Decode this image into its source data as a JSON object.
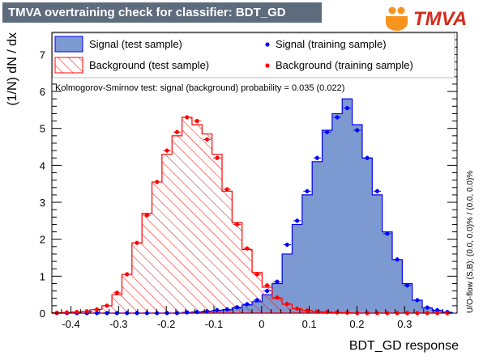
{
  "title": "TMVA overtraining check for classifier: BDT_GD",
  "logo_text": "TMVA",
  "ks_text": "Kolmogorov-Smirnov test: signal (background) probability = 0.035 (0.022)",
  "side_text": "U/O-flow (S,B): (0.0, 0.0)% / (0.0, 0.0)%",
  "colors": {
    "signal_fill": "#7d99d1",
    "signal_line": "#0000ee",
    "background_hatch": "#ff0000",
    "signal_points": "#0000ff",
    "background_points": "#ff0000",
    "title_bg": "#5d6b7d"
  },
  "chart_data": {
    "type": "bar",
    "xlabel": "BDT_GD response",
    "ylabel": "(1/N) dN / dx",
    "xlim": [
      -0.44,
      0.41
    ],
    "ylim": [
      0,
      7.6
    ],
    "xticks": [
      -0.4,
      -0.3,
      -0.2,
      -0.1,
      0,
      0.1,
      0.2,
      0.3
    ],
    "xtick_labels": [
      "-0.4",
      "-0.3",
      "-0.2",
      "-0.1",
      "0",
      "0.1",
      "0.2",
      "0.3"
    ],
    "yticks": [
      0,
      1,
      2,
      3,
      4,
      5,
      6,
      7
    ],
    "ytick_labels": [
      "0",
      "1",
      "2",
      "3",
      "4",
      "5",
      "6",
      "7"
    ],
    "bin_edges": [
      -0.44,
      -0.419,
      -0.398,
      -0.377,
      -0.356,
      -0.335,
      -0.314,
      -0.293,
      -0.272,
      -0.251,
      -0.23,
      -0.209,
      -0.188,
      -0.167,
      -0.146,
      -0.125,
      -0.104,
      -0.083,
      -0.062,
      -0.041,
      -0.02,
      0.001,
      0.022,
      0.043,
      0.064,
      0.085,
      0.106,
      0.127,
      0.148,
      0.169,
      0.19,
      0.211,
      0.232,
      0.253,
      0.274,
      0.295,
      0.316,
      0.337,
      0.358,
      0.379,
      0.4
    ],
    "legend": {
      "position": "top",
      "entries": [
        "Signal (test sample)",
        "Background (test sample)",
        "Signal (training sample)",
        "Background (training sample)"
      ]
    },
    "series": [
      {
        "name": "Signal (test sample)",
        "style": "filled-histogram",
        "values": [
          0,
          0,
          0,
          0,
          0,
          0,
          0,
          0,
          0,
          0,
          0,
          0,
          0,
          0.02,
          0.03,
          0.05,
          0.07,
          0.09,
          0.14,
          0.22,
          0.31,
          0.5,
          0.8,
          1.6,
          2.4,
          3.2,
          4.1,
          4.95,
          5.4,
          5.8,
          5.1,
          4.2,
          3.2,
          2.2,
          1.45,
          0.8,
          0.35,
          0.14,
          0.07,
          0.02
        ]
      },
      {
        "name": "Background (test sample)",
        "style": "hatched-histogram",
        "values": [
          0.01,
          0.02,
          0.03,
          0.05,
          0.1,
          0.2,
          0.5,
          1.05,
          1.9,
          2.7,
          3.55,
          4.3,
          4.8,
          5.3,
          5.1,
          4.85,
          4.3,
          3.3,
          2.45,
          1.72,
          1.1,
          0.7,
          0.4,
          0.24,
          0.12,
          0.07,
          0.04,
          0.03,
          0.02,
          0.01,
          0,
          0,
          0,
          0,
          0,
          0,
          0,
          0,
          0,
          0
        ]
      },
      {
        "name": "Signal (training sample)",
        "style": "points",
        "values": [
          0,
          0,
          0,
          0,
          0,
          0,
          0,
          0,
          0,
          0,
          0,
          0,
          0,
          0.02,
          0.03,
          0.05,
          0.08,
          0.1,
          0.16,
          0.24,
          0.35,
          0.6,
          0.85,
          1.85,
          2.5,
          3.3,
          4.2,
          4.9,
          5.3,
          5.55,
          4.95,
          4.2,
          3.3,
          2.15,
          1.45,
          0.75,
          0.35,
          0.15,
          0.08,
          0.03
        ]
      },
      {
        "name": "Background (training sample)",
        "style": "points",
        "values": [
          0.01,
          0.02,
          0.03,
          0.05,
          0.1,
          0.2,
          0.55,
          1.05,
          1.9,
          2.65,
          3.55,
          4.4,
          4.9,
          5.3,
          5.2,
          4.7,
          4.2,
          3.35,
          2.4,
          1.75,
          1.05,
          0.75,
          0.42,
          0.25,
          0.12,
          0.07,
          0.04,
          0.03,
          0.02,
          0.01,
          0,
          0,
          0,
          0,
          0,
          0,
          0,
          0,
          0,
          0
        ]
      }
    ]
  }
}
